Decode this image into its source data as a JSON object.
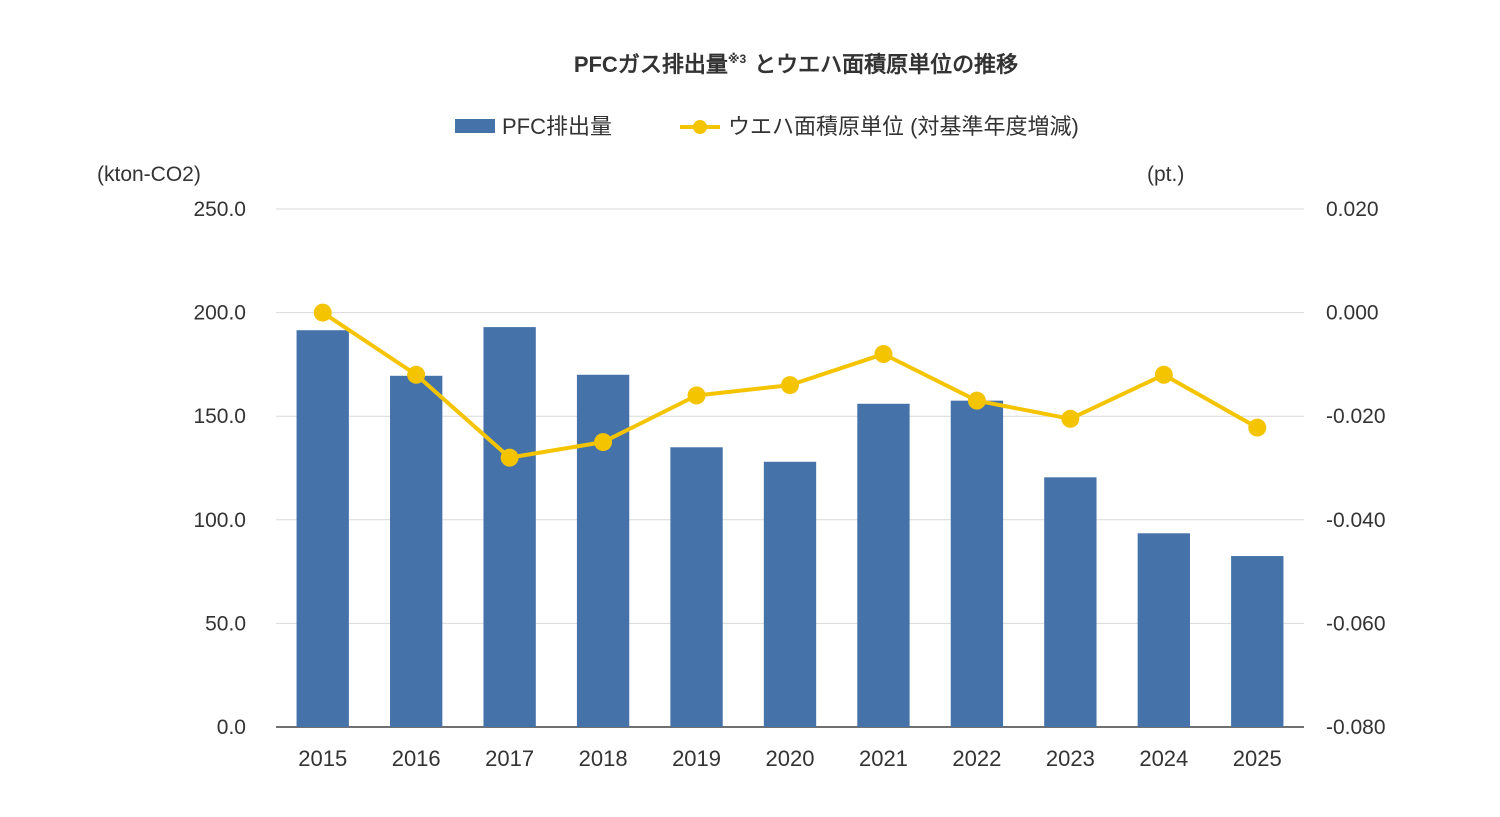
{
  "chart_data": {
    "type": "bar",
    "title": "PFCガス排出量",
    "title_superscript": "※3",
    "title_suffix": "とウエハ面積原単位の推移",
    "categories": [
      "2015",
      "2016",
      "2017",
      "2018",
      "2019",
      "2020",
      "2021",
      "2022",
      "2023",
      "2024",
      "2025"
    ],
    "series": [
      {
        "name": "PFC排出量",
        "type": "bar",
        "axis": "left",
        "color": "#4672AA",
        "values": [
          191.5,
          169.5,
          193.0,
          170.0,
          135.0,
          128.0,
          156.0,
          157.5,
          120.5,
          93.5,
          82.5
        ]
      },
      {
        "name": "ウエハ面積原単位 (対基準年度増減)",
        "type": "line",
        "axis": "right",
        "color": "#F5C400",
        "values": [
          0.0,
          -0.012,
          -0.028,
          -0.025,
          -0.016,
          -0.014,
          -0.008,
          -0.017,
          -0.0205,
          -0.012,
          -0.0222
        ]
      }
    ],
    "y_left": {
      "unit_label": "(kton-CO2)",
      "ylim": [
        0,
        250
      ],
      "ticks": [
        0,
        50,
        100,
        150,
        200,
        250
      ],
      "tick_labels": [
        "0.0",
        "50.0",
        "100.0",
        "150.0",
        "200.0",
        "250.0"
      ]
    },
    "y_right": {
      "unit_label": "(pt.)",
      "ylim": [
        -0.08,
        0.02
      ],
      "ticks": [
        -0.08,
        -0.06,
        -0.04,
        -0.02,
        0.0,
        0.02
      ],
      "tick_labels": [
        "-0.080",
        "-0.060",
        "-0.040",
        "-0.020",
        "0.000",
        "0.020"
      ]
    },
    "grid": true,
    "legend_position": "top-center"
  }
}
